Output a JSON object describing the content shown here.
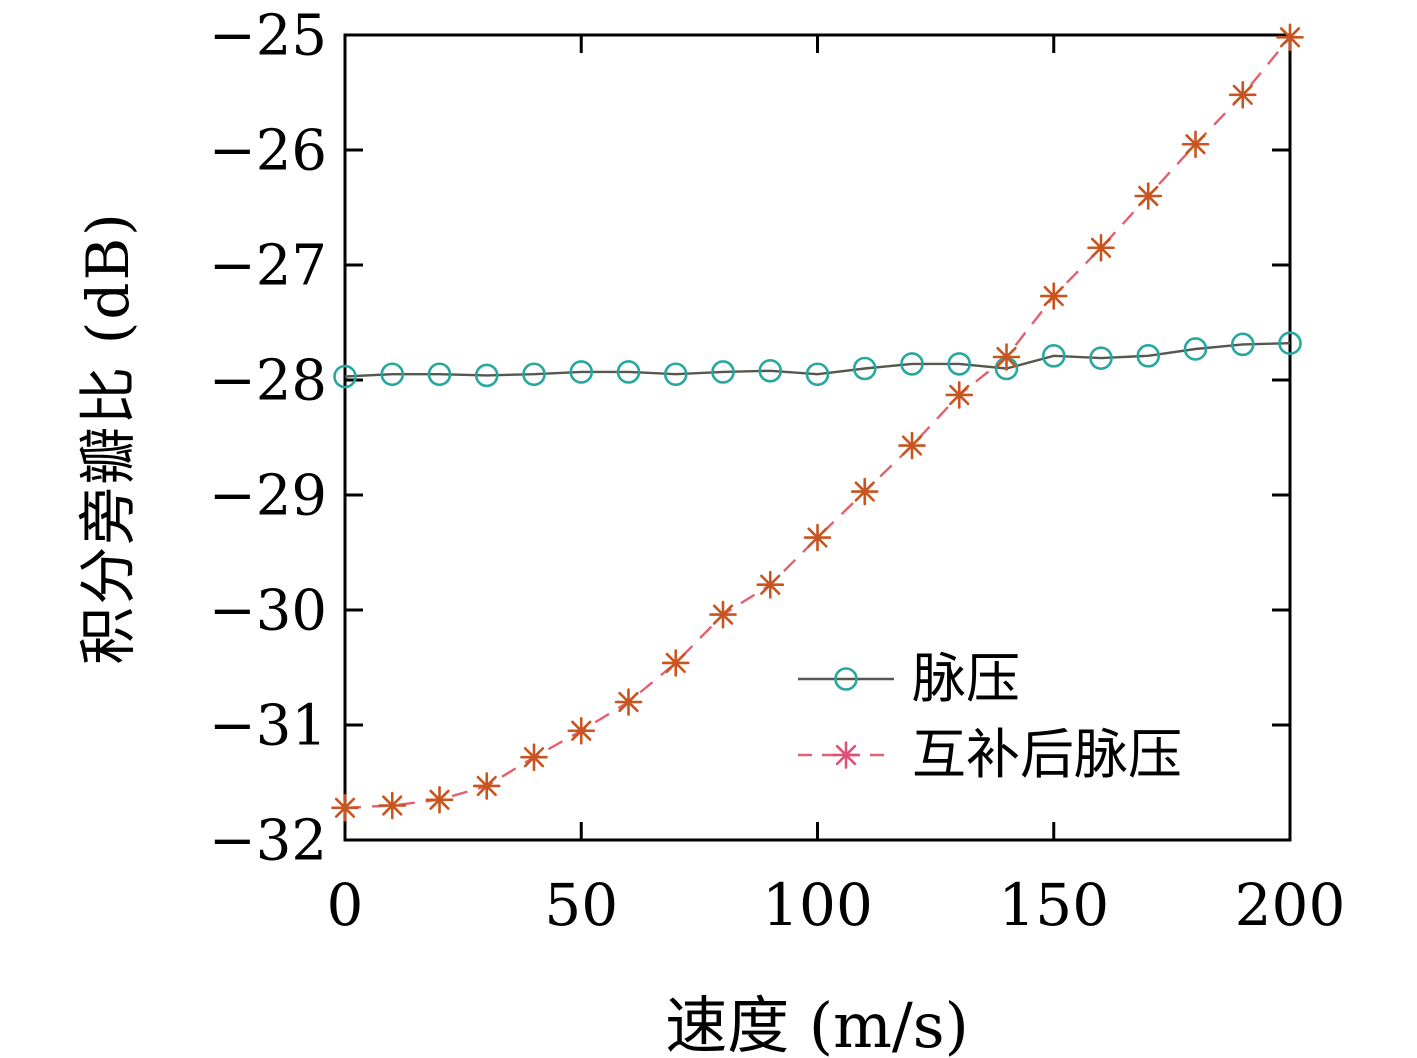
{
  "chart_data": {
    "type": "line",
    "title": "",
    "xlabel": "速度 (m/s)",
    "ylabel": "积分旁瓣比 (dB)",
    "xlim": [
      0,
      200
    ],
    "ylim": [
      -32,
      -25
    ],
    "x_ticks": [
      0,
      50,
      100,
      150,
      200
    ],
    "y_ticks": [
      -32,
      -31,
      -30,
      -29,
      -28,
      -27,
      -26,
      -25
    ],
    "grid": false,
    "legend_position": "inside lower-right",
    "frame_color": "#000000",
    "x": [
      0,
      10,
      20,
      30,
      40,
      50,
      60,
      70,
      80,
      90,
      100,
      110,
      120,
      130,
      140,
      150,
      160,
      170,
      180,
      190,
      200
    ],
    "series": [
      {
        "name": "脉压",
        "marker": "circle",
        "line_style": "solid",
        "line_color": "#54584e",
        "marker_color": "#27a89e",
        "values": [
          -27.97,
          -27.95,
          -27.95,
          -27.96,
          -27.95,
          -27.93,
          -27.93,
          -27.95,
          -27.93,
          -27.92,
          -27.95,
          -27.9,
          -27.86,
          -27.86,
          -27.9,
          -27.79,
          -27.81,
          -27.79,
          -27.73,
          -27.69,
          -27.68
        ]
      },
      {
        "name": "互补后脉压",
        "marker": "asterisk",
        "line_style": "dashed",
        "line_color": "#e2606f",
        "marker_color": "#c8541f",
        "values": [
          -31.72,
          -31.7,
          -31.65,
          -31.53,
          -31.28,
          -31.05,
          -30.8,
          -30.46,
          -30.04,
          -29.78,
          -29.37,
          -28.97,
          -28.57,
          -28.13,
          -27.8,
          -27.27,
          -26.85,
          -26.4,
          -25.95,
          -25.52,
          -25.02
        ]
      }
    ]
  }
}
